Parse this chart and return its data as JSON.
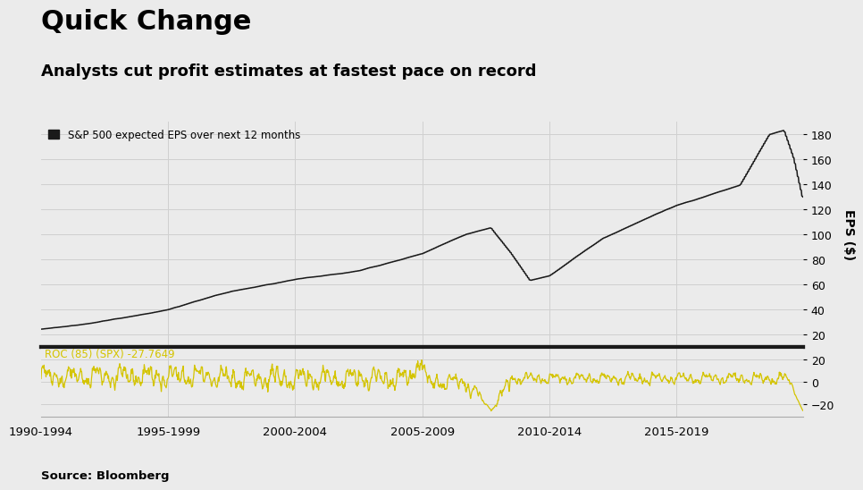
{
  "title": "Quick Change",
  "subtitle": "Analysts cut profit estimates at fastest pace on record",
  "legend_label": "S&P 500 expected EPS over next 12 months",
  "roc_label": "ROC (85) (SPX) -27.7649",
  "source": "Source: Bloomberg",
  "ylabel": "EPS ($)",
  "bg_color": "#ebebeb",
  "plot_bg": "#ebebeb",
  "line_color": "#1a1a1a",
  "roc_color": "#d4c400",
  "separator_color": "#1a1a1a",
  "grid_color": "#d0d0d0",
  "eps_ylim": [
    10,
    190
  ],
  "eps_yticks": [
    20,
    40,
    60,
    80,
    100,
    120,
    140,
    160,
    180
  ],
  "roc_ylim": [
    -32,
    32
  ],
  "roc_yticks": [
    -20,
    0,
    20
  ],
  "xtick_labels": [
    "1990-1994",
    "1995-1999",
    "2000-2004",
    "2005-2009",
    "2010-2014",
    "2015-2019"
  ],
  "title_fontsize": 22,
  "subtitle_fontsize": 13
}
